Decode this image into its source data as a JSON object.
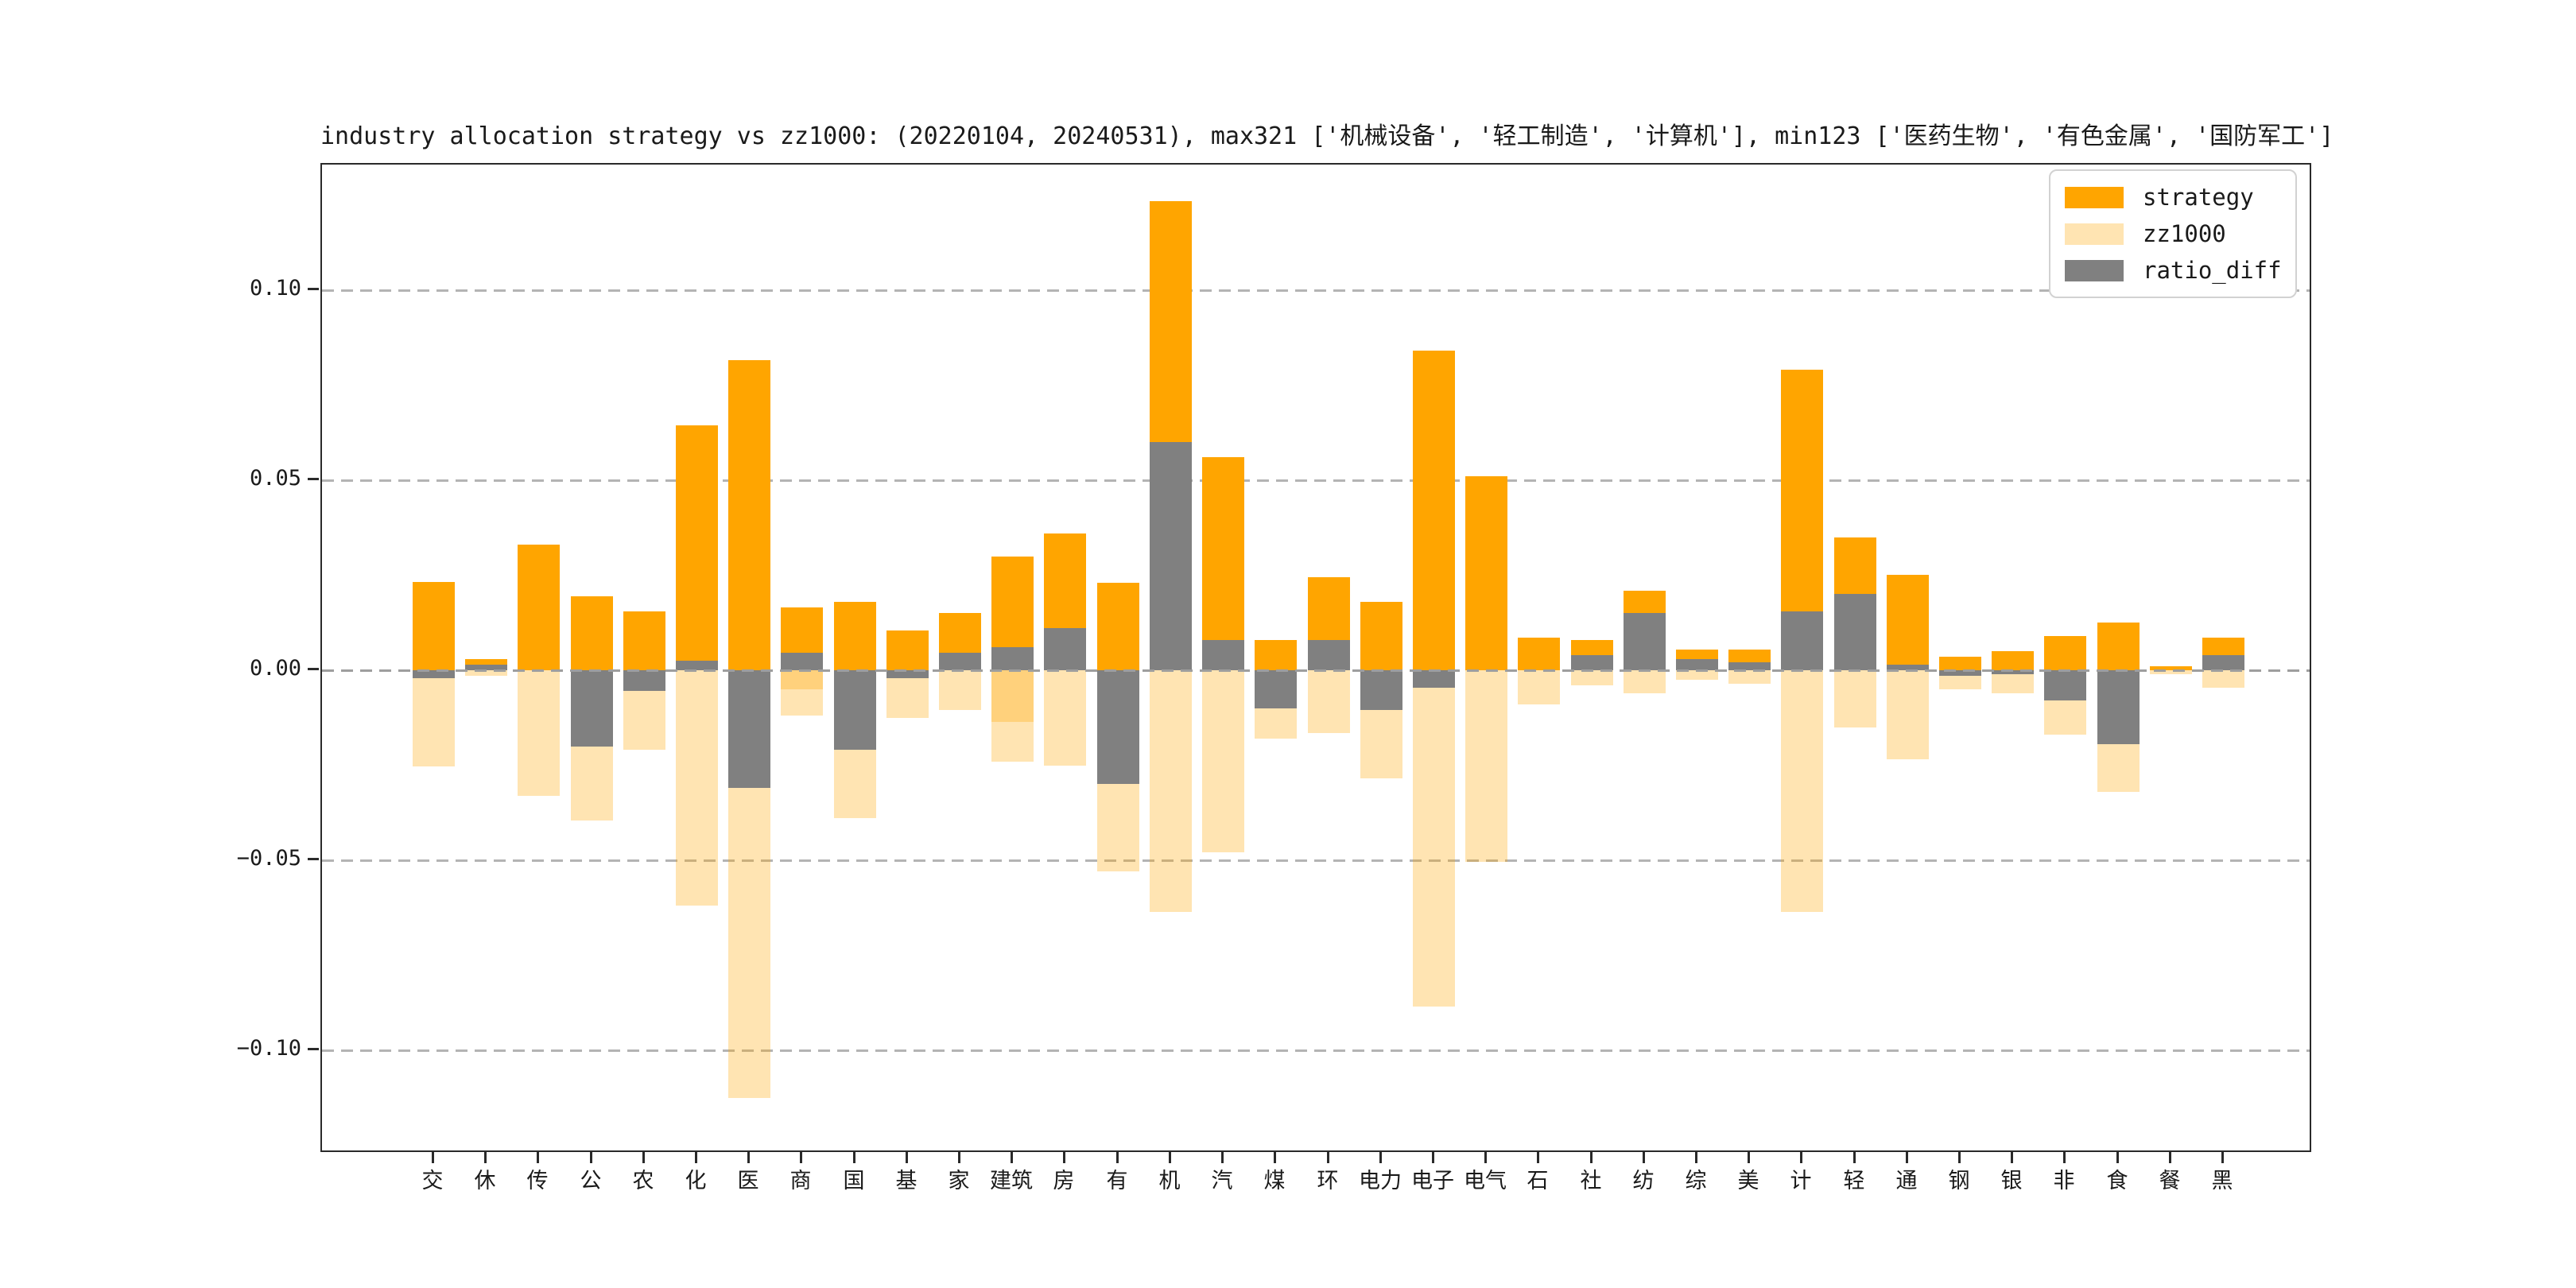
{
  "colors": {
    "strategy": "#FFA500",
    "zz1000_base": "#FFA500",
    "zz1000_alpha": 0.3,
    "ratio_diff": "#808080",
    "grid": "#b4b4b4",
    "zero_line": "#9e9e9e",
    "spine": "#2a2a2a",
    "text": "#1a1a1a"
  },
  "legend": {
    "position": "upper right",
    "items": [
      {
        "label": "strategy",
        "color": "#FFA500",
        "alpha": 1
      },
      {
        "label": "zz1000",
        "color": "#FFA500",
        "alpha": 0.3
      },
      {
        "label": "ratio_diff",
        "color": "#808080",
        "alpha": 1
      }
    ]
  },
  "axes": {
    "y_ticks": [
      {
        "label": "0.10",
        "value": 0.1
      },
      {
        "label": "0.05",
        "value": 0.05
      },
      {
        "label": "0.00",
        "value": 0.0
      },
      {
        "label": "−0.05",
        "value": -0.05
      },
      {
        "label": "−0.10",
        "value": -0.1
      }
    ]
  },
  "chart_data": {
    "type": "bar",
    "title": "industry allocation strategy vs zz1000: (20220104, 20240531), max321 ['机械设备', '轻工制造', '计算机'], min123 ['医药生物', '有色金属', '国防军工']",
    "xlabel": "",
    "ylabel": "",
    "ylim": [
      -0.127,
      0.133
    ],
    "grid": "horizontal dashed",
    "legend_position": "upper right",
    "note": "strategy plotted upward from 0; zz1000 weight plotted downward (negated, translucent); ratio_diff = strategy - zz1000 plotted as gray bar from 0",
    "categories": [
      "交",
      "休",
      "传",
      "公",
      "农",
      "化",
      "医",
      "商",
      "国",
      "基",
      "家",
      "建筑",
      "房",
      "有",
      "机",
      "汽",
      "煤",
      "环",
      "电力",
      "电子",
      "电气",
      "石",
      "社",
      "纺",
      "综",
      "美",
      "计",
      "轻",
      "通",
      "钢",
      "银",
      "非",
      "食",
      "餐",
      "黑"
    ],
    "series": [
      {
        "name": "strategy",
        "values": [
          0.0233,
          0.003,
          0.033,
          0.0195,
          0.0155,
          0.0645,
          0.0815,
          0.0165,
          0.018,
          0.0105,
          0.015,
          0.03,
          0.036,
          0.023,
          0.1235,
          0.056,
          0.008,
          0.0245,
          0.018,
          0.084,
          0.051,
          0.0085,
          0.008,
          0.021,
          0.0055,
          0.0055,
          0.079,
          0.035,
          0.025,
          0.0035,
          0.005,
          0.009,
          0.0125,
          0.001,
          0.0085
        ]
      },
      {
        "name": "zz1000",
        "plotted_as": "negated",
        "values": [
          0.0253,
          0.0015,
          0.033,
          0.0395,
          0.021,
          0.062,
          0.1125,
          0.012,
          0.039,
          0.0125,
          0.0105,
          0.024,
          0.025,
          0.053,
          0.0635,
          0.048,
          0.018,
          0.0165,
          0.0285,
          0.0885,
          0.0505,
          0.009,
          0.004,
          0.006,
          0.0025,
          0.0035,
          0.0635,
          0.015,
          0.0235,
          0.005,
          0.006,
          0.017,
          0.032,
          0.001,
          0.0045
        ]
      },
      {
        "name": "ratio_diff",
        "values": [
          -0.002,
          0.0015,
          0.0,
          -0.02,
          -0.0055,
          0.0025,
          -0.031,
          0.0045,
          -0.021,
          -0.002,
          0.0045,
          0.006,
          0.011,
          -0.03,
          0.06,
          0.008,
          -0.01,
          0.008,
          -0.0105,
          -0.0045,
          0.0005,
          -0.0005,
          0.004,
          0.015,
          0.003,
          0.002,
          0.0155,
          0.02,
          0.0015,
          -0.0015,
          -0.001,
          -0.008,
          -0.0195,
          0.0,
          0.004
        ]
      }
    ],
    "zz1000_inner_overlap": {
      "商": 0.005,
      "建筑": 0.0135
    }
  }
}
